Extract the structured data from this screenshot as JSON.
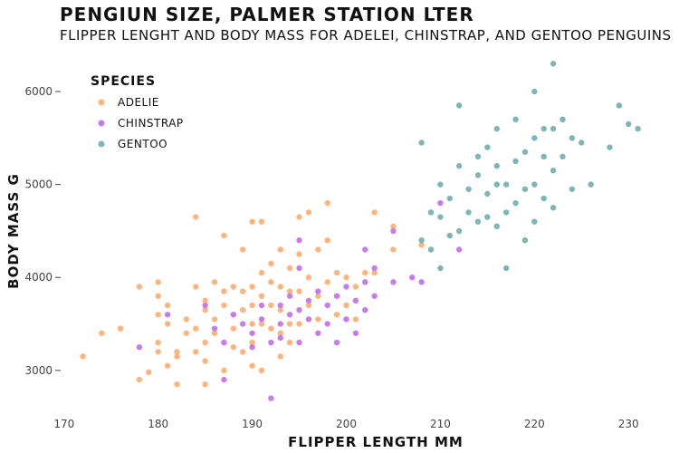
{
  "chart_data": {
    "type": "scatter",
    "title": "PENGIUN SIZE, PALMER STATION LTER",
    "subtitle": "FLIPPER LENGHT AND BODY MASS FOR ADELEI, CHINSTRAP, AND GENTOO PENGUINS",
    "xlabel": "FLIPPER LENGTH  MM",
    "ylabel": "BODY MASS  G",
    "xlim": [
      168,
      232
    ],
    "ylim": [
      2550,
      6400
    ],
    "xticks": [
      170,
      180,
      190,
      200,
      210,
      220,
      230
    ],
    "yticks": [
      3000,
      4000,
      5000,
      6000
    ],
    "grid": false,
    "legend": {
      "title": "SPECIES",
      "position": "top-left"
    },
    "series": [
      {
        "name": "ADELIE",
        "color": "#FDB47D",
        "points": [
          [
            172,
            3150
          ],
          [
            174,
            3400
          ],
          [
            176,
            3450
          ],
          [
            178,
            3900
          ],
          [
            178,
            2900
          ],
          [
            179,
            2980
          ],
          [
            180,
            3950
          ],
          [
            180,
            3800
          ],
          [
            180,
            3600
          ],
          [
            180,
            3200
          ],
          [
            180,
            3300
          ],
          [
            181,
            3700
          ],
          [
            181,
            3500
          ],
          [
            181,
            3050
          ],
          [
            182,
            3200
          ],
          [
            182,
            3150
          ],
          [
            182,
            2850
          ],
          [
            183,
            3550
          ],
          [
            183,
            3400
          ],
          [
            184,
            3450
          ],
          [
            184,
            3900
          ],
          [
            184,
            3200
          ],
          [
            184,
            4650
          ],
          [
            185,
            3750
          ],
          [
            185,
            3650
          ],
          [
            185,
            3300
          ],
          [
            185,
            3100
          ],
          [
            185,
            2850
          ],
          [
            186,
            3950
          ],
          [
            186,
            3550
          ],
          [
            186,
            3400
          ],
          [
            187,
            4450
          ],
          [
            187,
            3850
          ],
          [
            187,
            3700
          ],
          [
            187,
            3300
          ],
          [
            187,
            3000
          ],
          [
            188,
            3900
          ],
          [
            188,
            3600
          ],
          [
            188,
            3450
          ],
          [
            188,
            3250
          ],
          [
            189,
            4300
          ],
          [
            189,
            3850
          ],
          [
            189,
            3650
          ],
          [
            189,
            3200
          ],
          [
            190,
            4600
          ],
          [
            190,
            3900
          ],
          [
            190,
            3700
          ],
          [
            190,
            3500
          ],
          [
            190,
            3300
          ],
          [
            190,
            3050
          ],
          [
            191,
            4600
          ],
          [
            191,
            4050
          ],
          [
            191,
            3800
          ],
          [
            191,
            3500
          ],
          [
            191,
            3000
          ],
          [
            192,
            4150
          ],
          [
            192,
            3950
          ],
          [
            192,
            3700
          ],
          [
            192,
            3450
          ],
          [
            193,
            4300
          ],
          [
            193,
            3900
          ],
          [
            193,
            3650
          ],
          [
            193,
            3400
          ],
          [
            193,
            3150
          ],
          [
            194,
            4100
          ],
          [
            194,
            3850
          ],
          [
            194,
            3500
          ],
          [
            194,
            3300
          ],
          [
            195,
            4650
          ],
          [
            195,
            4250
          ],
          [
            195,
            3850
          ],
          [
            195,
            3500
          ],
          [
            196,
            4700
          ],
          [
            196,
            4000
          ],
          [
            196,
            3700
          ],
          [
            197,
            4300
          ],
          [
            197,
            3800
          ],
          [
            197,
            3550
          ],
          [
            198,
            4800
          ],
          [
            198,
            4400
          ],
          [
            198,
            3950
          ],
          [
            199,
            4050
          ],
          [
            199,
            3600
          ],
          [
            200,
            4000
          ],
          [
            200,
            3700
          ],
          [
            201,
            3900
          ],
          [
            201,
            3550
          ],
          [
            202,
            4050
          ],
          [
            203,
            4700
          ],
          [
            203,
            4050
          ],
          [
            205,
            4300
          ],
          [
            205,
            4550
          ],
          [
            208,
            4350
          ]
        ]
      },
      {
        "name": "CHINSTRAP",
        "color": "#C77CEE",
        "points": [
          [
            178,
            3250
          ],
          [
            181,
            3600
          ],
          [
            185,
            3700
          ],
          [
            186,
            3450
          ],
          [
            187,
            3300
          ],
          [
            187,
            2900
          ],
          [
            188,
            3600
          ],
          [
            189,
            3500
          ],
          [
            190,
            3400
          ],
          [
            190,
            3250
          ],
          [
            191,
            3700
          ],
          [
            191,
            3550
          ],
          [
            192,
            2700
          ],
          [
            192,
            3300
          ],
          [
            193,
            3700
          ],
          [
            193,
            3500
          ],
          [
            193,
            3350
          ],
          [
            194,
            3800
          ],
          [
            194,
            3600
          ],
          [
            195,
            4400
          ],
          [
            195,
            4100
          ],
          [
            195,
            3650
          ],
          [
            195,
            3300
          ],
          [
            196,
            3750
          ],
          [
            196,
            3550
          ],
          [
            197,
            3850
          ],
          [
            197,
            3400
          ],
          [
            198,
            3700
          ],
          [
            198,
            3500
          ],
          [
            199,
            3800
          ],
          [
            199,
            3300
          ],
          [
            200,
            3900
          ],
          [
            200,
            3550
          ],
          [
            201,
            3750
          ],
          [
            201,
            3400
          ],
          [
            202,
            4300
          ],
          [
            202,
            3650
          ],
          [
            202,
            3950
          ],
          [
            203,
            4100
          ],
          [
            203,
            3800
          ],
          [
            205,
            3950
          ],
          [
            205,
            4500
          ],
          [
            207,
            4000
          ],
          [
            208,
            3950
          ],
          [
            210,
            4800
          ],
          [
            212,
            4300
          ]
        ]
      },
      {
        "name": "GENTOO",
        "color": "#7EB5B5",
        "points": [
          [
            208,
            4400
          ],
          [
            208,
            5450
          ],
          [
            209,
            4300
          ],
          [
            209,
            4700
          ],
          [
            210,
            4100
          ],
          [
            210,
            4650
          ],
          [
            210,
            5000
          ],
          [
            211,
            4450
          ],
          [
            211,
            4850
          ],
          [
            212,
            4500
          ],
          [
            212,
            5200
          ],
          [
            212,
            5850
          ],
          [
            213,
            4700
          ],
          [
            213,
            4950
          ],
          [
            214,
            4600
          ],
          [
            214,
            5100
          ],
          [
            214,
            5300
          ],
          [
            215,
            4650
          ],
          [
            215,
            4900
          ],
          [
            215,
            5400
          ],
          [
            216,
            4550
          ],
          [
            216,
            5000
          ],
          [
            216,
            5200
          ],
          [
            216,
            5600
          ],
          [
            217,
            4100
          ],
          [
            217,
            4700
          ],
          [
            217,
            5000
          ],
          [
            218,
            4800
          ],
          [
            218,
            5250
          ],
          [
            218,
            5700
          ],
          [
            219,
            4400
          ],
          [
            219,
            4950
          ],
          [
            219,
            5350
          ],
          [
            220,
            4600
          ],
          [
            220,
            5000
          ],
          [
            220,
            5500
          ],
          [
            220,
            6000
          ],
          [
            221,
            4850
          ],
          [
            221,
            5300
          ],
          [
            221,
            5600
          ],
          [
            222,
            4750
          ],
          [
            222,
            5150
          ],
          [
            222,
            5600
          ],
          [
            222,
            6300
          ],
          [
            223,
            5300
          ],
          [
            223,
            5700
          ],
          [
            224,
            4950
          ],
          [
            224,
            5500
          ],
          [
            225,
            5450
          ],
          [
            226,
            5000
          ],
          [
            228,
            5400
          ],
          [
            229,
            5850
          ],
          [
            230,
            5650
          ],
          [
            231,
            5600
          ]
        ]
      }
    ]
  }
}
